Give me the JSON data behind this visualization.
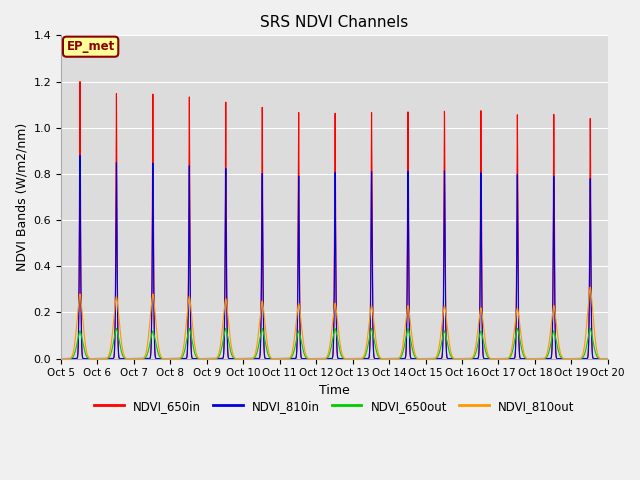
{
  "title": "SRS NDVI Channels",
  "xlabel": "Time",
  "ylabel": "NDVI Bands (W/m2/nm)",
  "ylim": [
    0,
    1.4
  ],
  "background_color": "#f0f0f0",
  "plot_bg_color": "#dcdcdc",
  "NDVI_650in_peaks": [
    1.2,
    1.15,
    1.15,
    1.14,
    1.12,
    1.1,
    1.08,
    1.08,
    1.08,
    1.08,
    1.08,
    1.08,
    1.06,
    1.06,
    1.04
  ],
  "NDVI_810in_peaks": [
    0.88,
    0.85,
    0.85,
    0.84,
    0.83,
    0.81,
    0.8,
    0.82,
    0.82,
    0.82,
    0.82,
    0.81,
    0.8,
    0.79,
    0.78
  ],
  "NDVI_650out_peaks": [
    0.12,
    0.13,
    0.12,
    0.13,
    0.13,
    0.13,
    0.12,
    0.13,
    0.13,
    0.13,
    0.12,
    0.12,
    0.13,
    0.12,
    0.13
  ],
  "NDVI_810out_peaks": [
    0.28,
    0.27,
    0.28,
    0.27,
    0.26,
    0.25,
    0.24,
    0.24,
    0.23,
    0.23,
    0.23,
    0.22,
    0.22,
    0.23,
    0.31
  ],
  "colors": {
    "NDVI_650in": "#ff0000",
    "NDVI_810in": "#0000dd",
    "NDVI_650out": "#00cc00",
    "NDVI_810out": "#ff9900"
  },
  "legend_labels": [
    "NDVI_650in",
    "NDVI_810in",
    "NDVI_650out",
    "NDVI_810out"
  ],
  "xtick_labels": [
    "Oct 5",
    "Oct 6",
    "Oct 7",
    "Oct 8",
    "Oct 9",
    "Oct 10",
    "Oct 11",
    "Oct 12",
    "Oct 13",
    "Oct 14",
    "Oct 15",
    "Oct 16",
    "Oct 17",
    "Oct 18",
    "Oct 19",
    "Oct 20"
  ],
  "annotation_text": "EP_met",
  "annotation_bg": "#ffff99",
  "annotation_border": "#8b0000"
}
